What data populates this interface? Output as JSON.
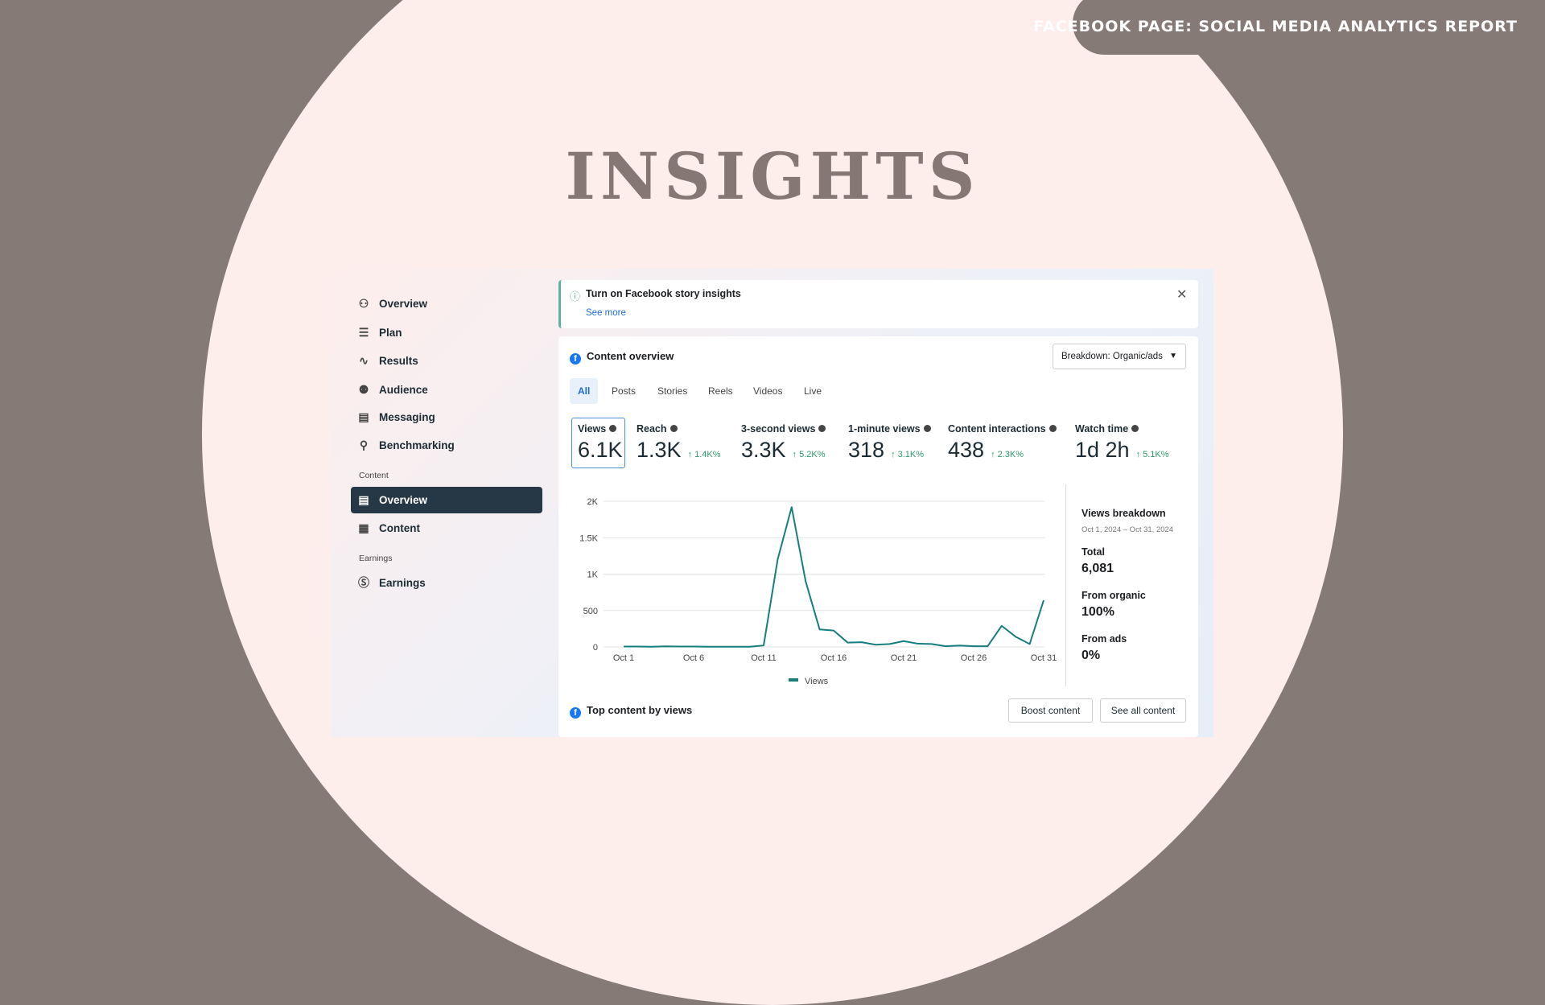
{
  "header": {
    "badge": "FACEBOOK PAGE: SOCIAL MEDIA ANALYTICS REPORT",
    "title": "INSIGHTS"
  },
  "sidebar": {
    "items": [
      {
        "label": "Overview",
        "icon": "network-icon"
      },
      {
        "label": "Plan",
        "icon": "numbered-list-icon"
      },
      {
        "label": "Results",
        "icon": "trend-icon"
      },
      {
        "label": "Audience",
        "icon": "people-icon"
      },
      {
        "label": "Messaging",
        "icon": "message-icon"
      },
      {
        "label": "Benchmarking",
        "icon": "magnify-icon"
      }
    ],
    "content_section": "Content",
    "content_items": [
      {
        "label": "Overview",
        "icon": "cards-icon",
        "active": true
      },
      {
        "label": "Content",
        "icon": "table-icon"
      }
    ],
    "earnings_section": "Earnings",
    "earnings_items": [
      {
        "label": "Earnings",
        "icon": "dollar-icon"
      }
    ]
  },
  "banner": {
    "title": "Turn on Facebook story insights",
    "link": "See more"
  },
  "overview": {
    "title": "Content overview",
    "breakdown": "Breakdown: Organic/ads",
    "tabs": [
      "All",
      "Posts",
      "Stories",
      "Reels",
      "Videos",
      "Live"
    ],
    "selected_tab": "All",
    "metrics": [
      {
        "label": "Views",
        "value": "6.1K",
        "delta": ""
      },
      {
        "label": "Reach",
        "value": "1.3K",
        "delta": "↑ 1.4K%"
      },
      {
        "label": "3-second views",
        "value": "3.3K",
        "delta": "↑ 5.2K%"
      },
      {
        "label": "1-minute views",
        "value": "318",
        "delta": "↑ 3.1K%"
      },
      {
        "label": "Content interactions",
        "value": "438",
        "delta": "↑ 2.3K%"
      },
      {
        "label": "Watch time",
        "value": "1d 2h",
        "delta": "↑ 5.1K%"
      }
    ],
    "views_breakdown": {
      "title": "Views breakdown",
      "range": "Oct 1, 2024 – Oct 31, 2024",
      "total_label": "Total",
      "total": "6,081",
      "organic_label": "From organic",
      "organic": "100%",
      "ads_label": "From ads",
      "ads": "0%"
    },
    "top_content": "Top content by views",
    "boost": "Boost content",
    "see_all": "See all content"
  },
  "chart_data": {
    "type": "line",
    "x_ticks": [
      "Oct 1",
      "Oct 6",
      "Oct 11",
      "Oct 16",
      "Oct 21",
      "Oct 26",
      "Oct 31"
    ],
    "y_ticks": [
      "0",
      "500",
      "1K",
      "1.5K",
      "2K"
    ],
    "ylim": [
      0,
      2000
    ],
    "grid": true,
    "legend": "bottom",
    "color": "#177e7e",
    "series": [
      {
        "name": "Views",
        "values": [
          5,
          5,
          3,
          8,
          5,
          5,
          3,
          3,
          3,
          3,
          20,
          1200,
          1920,
          900,
          240,
          225,
          60,
          65,
          30,
          40,
          80,
          45,
          40,
          10,
          20,
          10,
          10,
          290,
          140,
          40,
          640
        ]
      }
    ]
  }
}
